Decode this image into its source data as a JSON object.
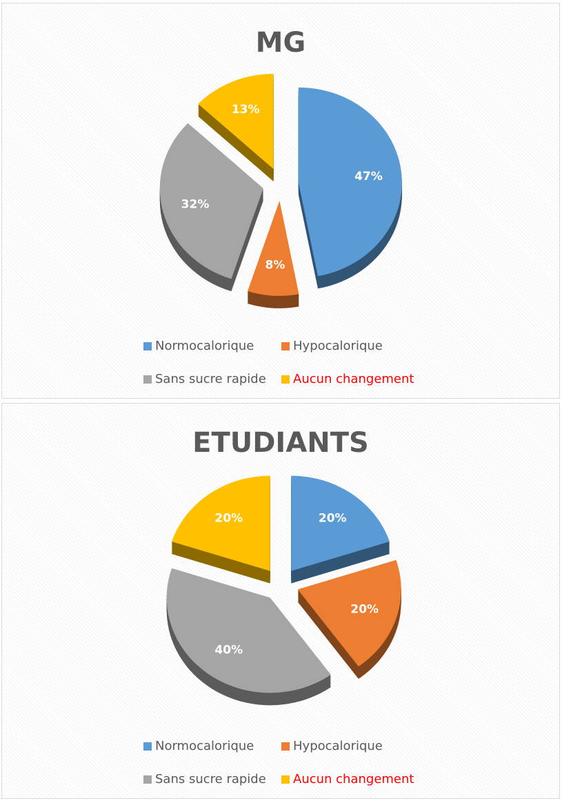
{
  "chart_data": [
    {
      "type": "pie",
      "title": "MG",
      "categories": [
        "Normocalorique",
        "Hypocalorique",
        "Sans sucre rapide",
        "Aucun changement"
      ],
      "values": [
        47,
        8,
        32,
        13
      ],
      "value_labels": [
        "47%",
        "8%",
        "32%",
        "13%"
      ],
      "colors": [
        "#5b9bd5",
        "#ed7d31",
        "#a5a5a5",
        "#ffc000"
      ],
      "legend_text_colors": [
        "#595959",
        "#595959",
        "#595959",
        "#ff0000"
      ]
    },
    {
      "type": "pie",
      "title": "ETUDIANTS",
      "categories": [
        "Normocalorique",
        "Hypocalorique",
        "Sans sucre rapide",
        "Aucun changement"
      ],
      "values": [
        20,
        20,
        40,
        20
      ],
      "value_labels": [
        "20%",
        "20%",
        "40%",
        "20%"
      ],
      "colors": [
        "#5b9bd5",
        "#ed7d31",
        "#a5a5a5",
        "#ffc000"
      ],
      "legend_text_colors": [
        "#595959",
        "#595959",
        "#595959",
        "#ff0000"
      ]
    }
  ]
}
